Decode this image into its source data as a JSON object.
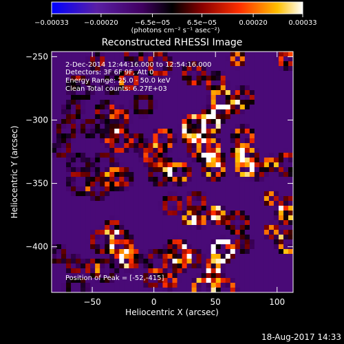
{
  "chart_data": {
    "type": "heatmap",
    "title": "Reconstructed RHESSI Image",
    "xlabel": "Heliocentric X (arcsec)",
    "ylabel": "Heliocentric Y (arcsec)",
    "xlim": [
      -83,
      113
    ],
    "ylim": [
      -436,
      -246
    ],
    "x_ticks": [
      -50,
      0,
      50,
      100
    ],
    "y_ticks": [
      -400,
      -350,
      -300,
      -250
    ],
    "x_tick_labels": [
      "−50",
      "0",
      "50",
      "100"
    ],
    "y_tick_labels": [
      "−400",
      "−350",
      "−300",
      "−250"
    ],
    "colorbar": {
      "range": [
        -0.00033,
        0.00033
      ],
      "ticks": [
        -0.00033,
        -0.0002,
        -6.5e-05,
        6.5e-05,
        0.0002,
        0.00033
      ],
      "tick_labels": [
        "−0.00033",
        "−0.00020",
        "−6.5e−05",
        "6.5e−05",
        "0.00020",
        "0.00033"
      ],
      "unit_label": "(photons cm⁻² s⁻¹ asec⁻²)",
      "colors": [
        "#0000ff",
        "#5a1fa5",
        "#400060",
        "#000000",
        "#8a0000",
        "#ff3000",
        "#ffc000",
        "#ffffff"
      ]
    },
    "annotations": [
      " 2-Dec-2014 12:44:16.000 to 12:54:16.000",
      "Detectors: 3F 6F 9F, Att 0",
      "Energy Range: 25.0 - 50.0 keV",
      "Clean     Total counts: 6.27E+03"
    ],
    "peak_label": "Position of Peak = [-52,-415]"
  },
  "footer": {
    "timestamp": "18-Aug-2017 14:33"
  }
}
